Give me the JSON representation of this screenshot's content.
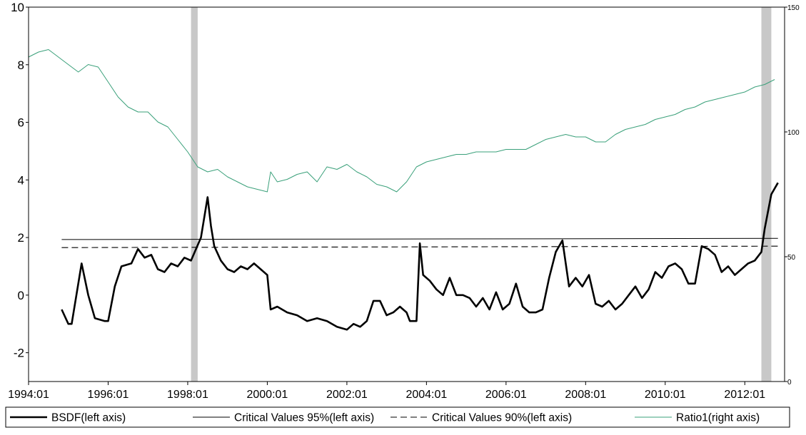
{
  "chart_data": {
    "type": "line",
    "title": "",
    "xlabel": "",
    "ylabel": "",
    "x_ticks": [
      "1994:01",
      "1996:01",
      "1998:01",
      "2000:01",
      "2002:01",
      "2004:01",
      "2006:01",
      "2008:01",
      "2010:01",
      "2012:01"
    ],
    "x_range": [
      "1994-01",
      "2012-12"
    ],
    "ylim_left": [
      -3,
      10
    ],
    "yticks_left": [
      -2,
      0,
      2,
      4,
      6,
      8,
      10
    ],
    "ylim_right": [
      0,
      150
    ],
    "yticks_right": [
      0,
      50,
      100,
      150
    ],
    "grid": false,
    "legend_position": "bottom",
    "shaded_periods": [
      {
        "start": "1998-02",
        "end": "1998-04"
      },
      {
        "start": "2012-06",
        "end": "2012-09"
      }
    ],
    "series": [
      {
        "name": "BSDF(left axis)",
        "axis": "left",
        "color": "#000000",
        "style": "solid-thick",
        "points": [
          [
            "1994-11",
            -0.5
          ],
          [
            "1995-01",
            -1.0
          ],
          [
            "1995-02",
            -1.0
          ],
          [
            "1995-05",
            1.1
          ],
          [
            "1995-07",
            0.0
          ],
          [
            "1995-09",
            -0.8
          ],
          [
            "1995-12",
            -0.9
          ],
          [
            "1996-01",
            -0.9
          ],
          [
            "1996-03",
            0.3
          ],
          [
            "1996-05",
            1.0
          ],
          [
            "1996-08",
            1.1
          ],
          [
            "1996-10",
            1.6
          ],
          [
            "1996-12",
            1.3
          ],
          [
            "1997-02",
            1.4
          ],
          [
            "1997-04",
            0.9
          ],
          [
            "1997-06",
            0.8
          ],
          [
            "1997-08",
            1.1
          ],
          [
            "1997-10",
            1.0
          ],
          [
            "1997-12",
            1.3
          ],
          [
            "1998-02",
            1.2
          ],
          [
            "1998-05",
            2.0
          ],
          [
            "1998-07",
            3.4
          ],
          [
            "1998-08",
            2.4
          ],
          [
            "1998-09",
            1.7
          ],
          [
            "1998-11",
            1.2
          ],
          [
            "1999-01",
            0.9
          ],
          [
            "1999-03",
            0.8
          ],
          [
            "1999-05",
            1.0
          ],
          [
            "1999-07",
            0.9
          ],
          [
            "1999-09",
            1.1
          ],
          [
            "1999-11",
            0.9
          ],
          [
            "2000-01",
            0.7
          ],
          [
            "2000-02",
            -0.5
          ],
          [
            "2000-04",
            -0.4
          ],
          [
            "2000-07",
            -0.6
          ],
          [
            "2000-10",
            -0.7
          ],
          [
            "2001-01",
            -0.9
          ],
          [
            "2001-04",
            -0.8
          ],
          [
            "2001-07",
            -0.9
          ],
          [
            "2001-10",
            -1.1
          ],
          [
            "2002-01",
            -1.2
          ],
          [
            "2002-03",
            -1.0
          ],
          [
            "2002-05",
            -1.1
          ],
          [
            "2002-07",
            -0.9
          ],
          [
            "2002-09",
            -0.2
          ],
          [
            "2002-11",
            -0.2
          ],
          [
            "2003-01",
            -0.7
          ],
          [
            "2003-03",
            -0.6
          ],
          [
            "2003-05",
            -0.4
          ],
          [
            "2003-07",
            -0.6
          ],
          [
            "2003-08",
            -0.9
          ],
          [
            "2003-10",
            -0.9
          ],
          [
            "2003-11",
            1.8
          ],
          [
            "2003-12",
            0.7
          ],
          [
            "2004-02",
            0.5
          ],
          [
            "2004-04",
            0.2
          ],
          [
            "2004-06",
            0.0
          ],
          [
            "2004-08",
            0.6
          ],
          [
            "2004-10",
            0.0
          ],
          [
            "2004-12",
            0.0
          ],
          [
            "2005-02",
            -0.1
          ],
          [
            "2005-04",
            -0.4
          ],
          [
            "2005-06",
            -0.1
          ],
          [
            "2005-08",
            -0.5
          ],
          [
            "2005-10",
            0.1
          ],
          [
            "2005-12",
            -0.5
          ],
          [
            "2006-02",
            -0.3
          ],
          [
            "2006-04",
            0.4
          ],
          [
            "2006-06",
            -0.4
          ],
          [
            "2006-08",
            -0.6
          ],
          [
            "2006-10",
            -0.6
          ],
          [
            "2006-12",
            -0.5
          ],
          [
            "2007-02",
            0.6
          ],
          [
            "2007-04",
            1.5
          ],
          [
            "2007-06",
            1.9
          ],
          [
            "2007-08",
            0.3
          ],
          [
            "2007-10",
            0.6
          ],
          [
            "2007-12",
            0.3
          ],
          [
            "2008-02",
            0.7
          ],
          [
            "2008-04",
            -0.3
          ],
          [
            "2008-06",
            -0.4
          ],
          [
            "2008-08",
            -0.2
          ],
          [
            "2008-10",
            -0.5
          ],
          [
            "2008-12",
            -0.3
          ],
          [
            "2009-02",
            0.0
          ],
          [
            "2009-04",
            0.3
          ],
          [
            "2009-06",
            -0.1
          ],
          [
            "2009-08",
            0.2
          ],
          [
            "2009-10",
            0.8
          ],
          [
            "2009-12",
            0.6
          ],
          [
            "2010-02",
            1.0
          ],
          [
            "2010-04",
            1.1
          ],
          [
            "2010-06",
            0.9
          ],
          [
            "2010-08",
            0.4
          ],
          [
            "2010-10",
            0.4
          ],
          [
            "2010-12",
            1.7
          ],
          [
            "2011-02",
            1.6
          ],
          [
            "2011-04",
            1.4
          ],
          [
            "2011-06",
            0.8
          ],
          [
            "2011-08",
            1.0
          ],
          [
            "2011-10",
            0.7
          ],
          [
            "2011-12",
            0.9
          ],
          [
            "2012-02",
            1.1
          ],
          [
            "2012-04",
            1.2
          ],
          [
            "2012-06",
            1.5
          ],
          [
            "2012-07",
            2.3
          ],
          [
            "2012-09",
            3.5
          ],
          [
            "2012-11",
            3.9
          ]
        ]
      },
      {
        "name": "Critical Values 95%(left axis)",
        "axis": "left",
        "color": "#000000",
        "style": "solid-thin",
        "points": [
          [
            "1994-11",
            1.93
          ],
          [
            "2012-11",
            1.97
          ]
        ]
      },
      {
        "name": "Critical Values 90%(left axis)",
        "axis": "left",
        "color": "#000000",
        "style": "dashed",
        "points": [
          [
            "1994-11",
            1.65
          ],
          [
            "2012-11",
            1.7
          ]
        ]
      },
      {
        "name": "Ratio1(right axis)",
        "axis": "right",
        "color": "#3aa07a",
        "style": "solid-thin",
        "points": [
          [
            "1994-01",
            130
          ],
          [
            "1994-04",
            132
          ],
          [
            "1994-07",
            133
          ],
          [
            "1994-10",
            130
          ],
          [
            "1995-01",
            127
          ],
          [
            "1995-04",
            124
          ],
          [
            "1995-07",
            127
          ],
          [
            "1995-10",
            126
          ],
          [
            "1996-01",
            120
          ],
          [
            "1996-04",
            114
          ],
          [
            "1996-07",
            110
          ],
          [
            "1996-10",
            108
          ],
          [
            "1997-01",
            108
          ],
          [
            "1997-04",
            104
          ],
          [
            "1997-07",
            102
          ],
          [
            "1997-10",
            97
          ],
          [
            "1998-01",
            92
          ],
          [
            "1998-04",
            86
          ],
          [
            "1998-07",
            84
          ],
          [
            "1998-10",
            85
          ],
          [
            "1999-01",
            82
          ],
          [
            "1999-04",
            80
          ],
          [
            "1999-07",
            78
          ],
          [
            "1999-10",
            77
          ],
          [
            "2000-01",
            76
          ],
          [
            "2000-02",
            84
          ],
          [
            "2000-04",
            80
          ],
          [
            "2000-07",
            81
          ],
          [
            "2000-10",
            83
          ],
          [
            "2001-01",
            84
          ],
          [
            "2001-04",
            80
          ],
          [
            "2001-07",
            86
          ],
          [
            "2001-10",
            85
          ],
          [
            "2002-01",
            87
          ],
          [
            "2002-04",
            84
          ],
          [
            "2002-07",
            82
          ],
          [
            "2002-10",
            79
          ],
          [
            "2003-01",
            78
          ],
          [
            "2003-04",
            76
          ],
          [
            "2003-07",
            80
          ],
          [
            "2003-10",
            86
          ],
          [
            "2004-01",
            88
          ],
          [
            "2004-04",
            89
          ],
          [
            "2004-07",
            90
          ],
          [
            "2004-10",
            91
          ],
          [
            "2005-01",
            91
          ],
          [
            "2005-04",
            92
          ],
          [
            "2005-07",
            92
          ],
          [
            "2005-10",
            92
          ],
          [
            "2006-01",
            93
          ],
          [
            "2006-04",
            93
          ],
          [
            "2006-07",
            93
          ],
          [
            "2006-10",
            95
          ],
          [
            "2007-01",
            97
          ],
          [
            "2007-04",
            98
          ],
          [
            "2007-07",
            99
          ],
          [
            "2007-10",
            98
          ],
          [
            "2008-01",
            98
          ],
          [
            "2008-04",
            96
          ],
          [
            "2008-07",
            96
          ],
          [
            "2008-10",
            99
          ],
          [
            "2009-01",
            101
          ],
          [
            "2009-04",
            102
          ],
          [
            "2009-07",
            103
          ],
          [
            "2009-10",
            105
          ],
          [
            "2010-01",
            106
          ],
          [
            "2010-04",
            107
          ],
          [
            "2010-07",
            109
          ],
          [
            "2010-10",
            110
          ],
          [
            "2011-01",
            112
          ],
          [
            "2011-04",
            113
          ],
          [
            "2011-07",
            114
          ],
          [
            "2011-10",
            115
          ],
          [
            "2012-01",
            116
          ],
          [
            "2012-04",
            118
          ],
          [
            "2012-07",
            119
          ],
          [
            "2012-10",
            121
          ]
        ]
      }
    ]
  }
}
